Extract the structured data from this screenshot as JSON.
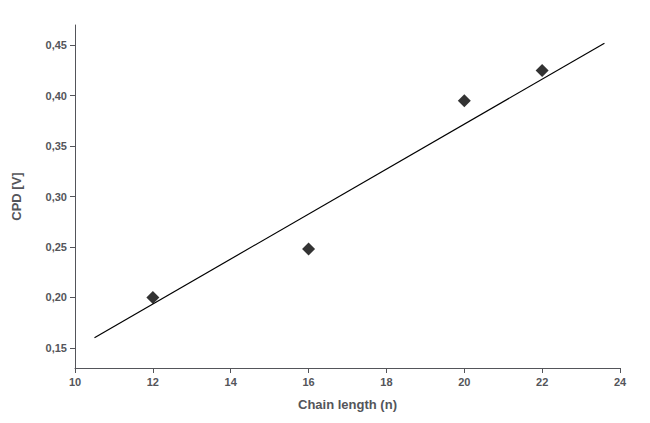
{
  "chart_data": {
    "type": "scatter",
    "xlabel": "Chain length (n)",
    "ylabel": "CPD [V]",
    "series": [
      {
        "type": "line",
        "color": "black",
        "x": [
          10.5,
          23.6
        ],
        "values": [
          0.16,
          0.452
        ]
      },
      {
        "type": "scatter",
        "marker": "diamond",
        "color": "black",
        "x": [
          12,
          16,
          20,
          22
        ],
        "values": [
          0.2,
          0.248,
          0.395,
          0.425
        ]
      }
    ],
    "xlim": [
      10,
      24
    ],
    "ylim": [
      0.13,
      0.47
    ],
    "xticks": [
      10,
      12,
      14,
      16,
      18,
      20,
      22,
      24
    ],
    "yticks": [
      {
        "value": 0.15,
        "label": "0,15"
      },
      {
        "value": 0.2,
        "label": "0,20"
      },
      {
        "value": 0.25,
        "label": "0,25"
      },
      {
        "value": 0.3,
        "label": "0,30"
      },
      {
        "value": 0.35,
        "label": "0,35"
      },
      {
        "value": 0.4,
        "label": "0,40"
      },
      {
        "value": 0.45,
        "label": "0,45"
      }
    ],
    "grid": false
  }
}
